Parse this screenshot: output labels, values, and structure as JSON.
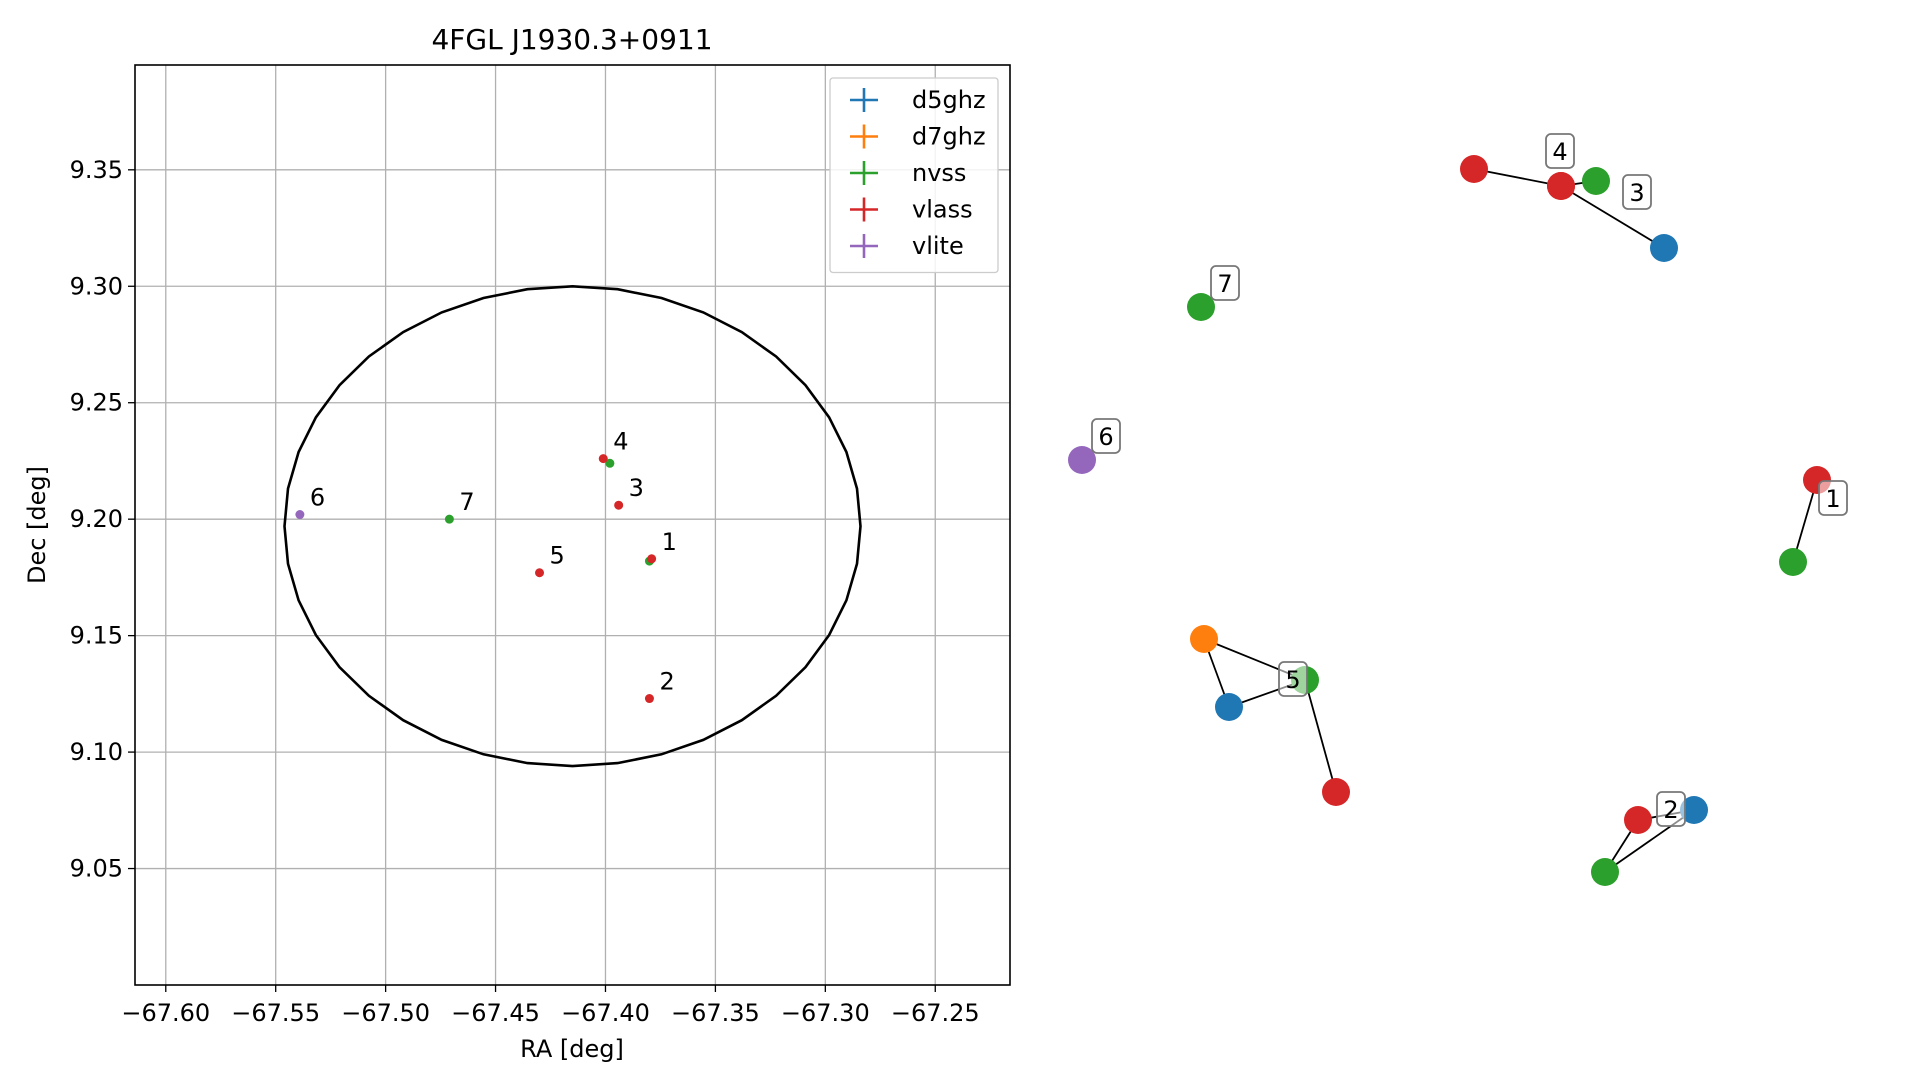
{
  "chart_data": [
    {
      "type": "scatter",
      "title": "4FGL J1930.3+0911",
      "xlabel": "RA [deg]",
      "ylabel": "Dec [deg]",
      "xlim": [
        -67.614,
        -67.216
      ],
      "ylim": [
        9.0,
        9.395
      ],
      "x_ticks": [
        -67.6,
        -67.55,
        -67.5,
        -67.45,
        -67.4,
        -67.35,
        -67.3,
        -67.25
      ],
      "x_tick_labels": [
        "−67.60",
        "−67.55",
        "−67.50",
        "−67.45",
        "−67.40",
        "−67.35",
        "−67.30",
        "−67.25"
      ],
      "y_ticks": [
        9.05,
        9.1,
        9.15,
        9.2,
        9.25,
        9.3,
        9.35
      ],
      "y_tick_labels": [
        "9.05",
        "9.10",
        "9.15",
        "9.20",
        "9.25",
        "9.30",
        "9.35"
      ],
      "grid": true,
      "legend_position": "top-right",
      "series": [
        {
          "name": "d5ghz",
          "color": "#1f77b4",
          "points": []
        },
        {
          "name": "d7ghz",
          "color": "#ff7f0e",
          "points": []
        },
        {
          "name": "nvss",
          "color": "#2ca02c",
          "points": [
            {
              "x": -67.38,
              "y": 9.182
            },
            {
              "x": -67.398,
              "y": 9.224
            },
            {
              "x": -67.471,
              "y": 9.2
            }
          ]
        },
        {
          "name": "vlass",
          "color": "#d62728",
          "points": [
            {
              "x": -67.379,
              "y": 9.183
            },
            {
              "x": -67.38,
              "y": 9.123
            },
            {
              "x": -67.394,
              "y": 9.206
            },
            {
              "x": -67.401,
              "y": 9.226
            },
            {
              "x": -67.43,
              "y": 9.177
            }
          ]
        },
        {
          "name": "vlite",
          "color": "#9467bd",
          "points": [
            {
              "x": -67.539,
              "y": 9.202
            }
          ]
        }
      ],
      "point_labels": [
        {
          "text": "1",
          "x": -67.379,
          "y": 9.183
        },
        {
          "text": "2",
          "x": -67.38,
          "y": 9.123
        },
        {
          "text": "3",
          "x": -67.394,
          "y": 9.206
        },
        {
          "text": "4",
          "x": -67.401,
          "y": 9.226
        },
        {
          "text": "5",
          "x": -67.43,
          "y": 9.177
        },
        {
          "text": "6",
          "x": -67.539,
          "y": 9.202
        },
        {
          "text": "7",
          "x": -67.471,
          "y": 9.2
        }
      ],
      "ellipse": {
        "center_x": -67.415,
        "center_y": 9.197,
        "semi_axis_ra": 0.131,
        "semi_axis_dec": 0.103
      }
    },
    {
      "type": "network",
      "title": "",
      "groups": [
        {
          "label": "1",
          "nodes": [
            {
              "series": "vlass"
            },
            {
              "series": "nvss"
            }
          ],
          "edges": [
            [
              0,
              1
            ]
          ]
        },
        {
          "label": "2",
          "nodes": [
            {
              "series": "vlass"
            },
            {
              "series": "d5ghz"
            },
            {
              "series": "nvss"
            }
          ],
          "edges": [
            [
              0,
              1
            ],
            [
              1,
              2
            ],
            [
              2,
              0
            ]
          ]
        },
        {
          "label": "3",
          "nodes": [
            {
              "series": "nvss"
            },
            {
              "series": "vlass"
            },
            {
              "series": "d5ghz"
            }
          ],
          "edges": [
            [
              0,
              1
            ],
            [
              1,
              2
            ]
          ]
        },
        {
          "label": "4",
          "nodes": [
            {
              "series": "vlass"
            },
            {
              "series": "vlass"
            }
          ],
          "edges": [
            [
              0,
              1
            ]
          ]
        },
        {
          "label": "5",
          "nodes": [
            {
              "series": "d7ghz"
            },
            {
              "series": "d5ghz"
            },
            {
              "series": "nvss"
            },
            {
              "series": "vlass"
            }
          ],
          "edges": [
            [
              0,
              1
            ],
            [
              1,
              2
            ],
            [
              2,
              0
            ],
            [
              2,
              3
            ]
          ]
        },
        {
          "label": "6",
          "nodes": [
            {
              "series": "vlite"
            }
          ],
          "edges": []
        },
        {
          "label": "7",
          "nodes": [
            {
              "series": "nvss"
            }
          ],
          "edges": []
        }
      ]
    }
  ]
}
